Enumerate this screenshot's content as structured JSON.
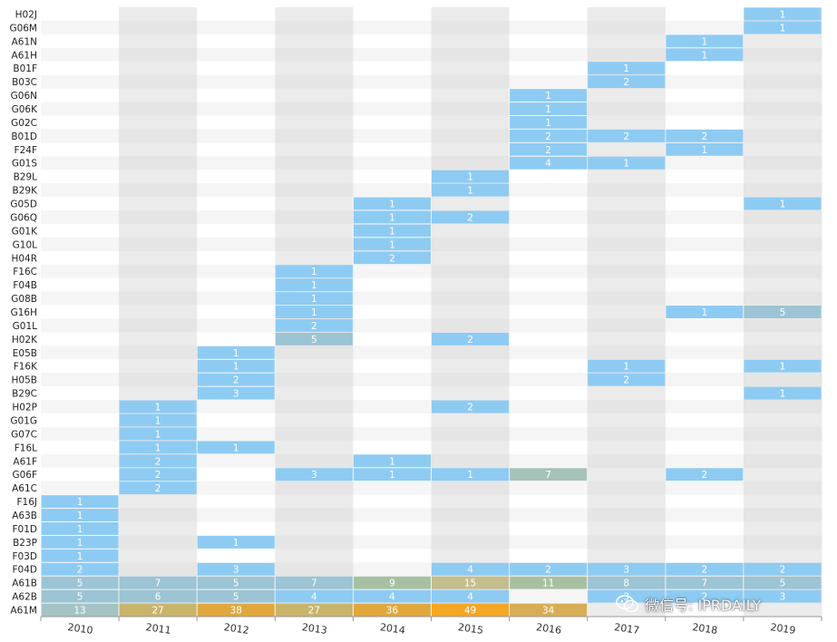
{
  "chart_data": {
    "type": "heatmap",
    "title": "",
    "xlabel": "",
    "ylabel": "",
    "x": [
      "2010",
      "2011",
      "2012",
      "2013",
      "2014",
      "2015",
      "2016",
      "2017",
      "2018",
      "2019"
    ],
    "y": [
      "H02J",
      "G06M",
      "A61N",
      "A61H",
      "B01F",
      "B03C",
      "G06N",
      "G06K",
      "G02C",
      "B01D",
      "F24F",
      "G01S",
      "B29L",
      "B29K",
      "G05D",
      "G06Q",
      "G01K",
      "G10L",
      "H04R",
      "F16C",
      "F04B",
      "G08B",
      "G16H",
      "G01L",
      "H02K",
      "E05B",
      "F16K",
      "H05B",
      "B29C",
      "H02P",
      "G01G",
      "G07C",
      "F16L",
      "A61F",
      "G06F",
      "A61C",
      "F16J",
      "A63B",
      "F01D",
      "B23P",
      "F03D",
      "F04D",
      "A61B",
      "A62B",
      "A61M"
    ],
    "cells": [
      [
        "H02J",
        "2019",
        1
      ],
      [
        "G06M",
        "2019",
        1
      ],
      [
        "A61N",
        "2018",
        1
      ],
      [
        "A61H",
        "2018",
        1
      ],
      [
        "B01F",
        "2017",
        1
      ],
      [
        "B03C",
        "2017",
        2
      ],
      [
        "G06N",
        "2016",
        1
      ],
      [
        "G06K",
        "2016",
        1
      ],
      [
        "G02C",
        "2016",
        1
      ],
      [
        "B01D",
        "2016",
        2
      ],
      [
        "B01D",
        "2017",
        2
      ],
      [
        "B01D",
        "2018",
        2
      ],
      [
        "F24F",
        "2016",
        2
      ],
      [
        "F24F",
        "2018",
        1
      ],
      [
        "G01S",
        "2016",
        4
      ],
      [
        "G01S",
        "2017",
        1
      ],
      [
        "B29L",
        "2015",
        1
      ],
      [
        "B29K",
        "2015",
        1
      ],
      [
        "G05D",
        "2014",
        1
      ],
      [
        "G05D",
        "2019",
        1
      ],
      [
        "G06Q",
        "2014",
        1
      ],
      [
        "G06Q",
        "2015",
        2
      ],
      [
        "G01K",
        "2014",
        1
      ],
      [
        "G10L",
        "2014",
        1
      ],
      [
        "H04R",
        "2014",
        2
      ],
      [
        "F16C",
        "2013",
        1
      ],
      [
        "F04B",
        "2013",
        1
      ],
      [
        "G08B",
        "2013",
        1
      ],
      [
        "G16H",
        "2013",
        1
      ],
      [
        "G16H",
        "2018",
        1
      ],
      [
        "G16H",
        "2019",
        5
      ],
      [
        "G01L",
        "2013",
        2
      ],
      [
        "H02K",
        "2013",
        5
      ],
      [
        "H02K",
        "2015",
        2
      ],
      [
        "E05B",
        "2012",
        1
      ],
      [
        "F16K",
        "2012",
        1
      ],
      [
        "F16K",
        "2017",
        1
      ],
      [
        "F16K",
        "2019",
        1
      ],
      [
        "H05B",
        "2012",
        2
      ],
      [
        "H05B",
        "2017",
        2
      ],
      [
        "B29C",
        "2012",
        3
      ],
      [
        "B29C",
        "2019",
        1
      ],
      [
        "H02P",
        "2011",
        1
      ],
      [
        "H02P",
        "2015",
        2
      ],
      [
        "G01G",
        "2011",
        1
      ],
      [
        "G07C",
        "2011",
        1
      ],
      [
        "F16L",
        "2011",
        1
      ],
      [
        "F16L",
        "2012",
        1
      ],
      [
        "A61F",
        "2011",
        2
      ],
      [
        "A61F",
        "2014",
        1
      ],
      [
        "G06F",
        "2011",
        2
      ],
      [
        "G06F",
        "2013",
        3
      ],
      [
        "G06F",
        "2014",
        1
      ],
      [
        "G06F",
        "2015",
        1
      ],
      [
        "G06F",
        "2016",
        7
      ],
      [
        "G06F",
        "2018",
        2
      ],
      [
        "A61C",
        "2011",
        2
      ],
      [
        "F16J",
        "2010",
        1
      ],
      [
        "A63B",
        "2010",
        1
      ],
      [
        "F01D",
        "2010",
        1
      ],
      [
        "B23P",
        "2010",
        1
      ],
      [
        "B23P",
        "2012",
        1
      ],
      [
        "F03D",
        "2010",
        1
      ],
      [
        "F04D",
        "2010",
        2
      ],
      [
        "F04D",
        "2012",
        3
      ],
      [
        "F04D",
        "2015",
        4
      ],
      [
        "F04D",
        "2016",
        2
      ],
      [
        "F04D",
        "2017",
        3
      ],
      [
        "F04D",
        "2018",
        2
      ],
      [
        "F04D",
        "2019",
        2
      ],
      [
        "A61B",
        "2010",
        5
      ],
      [
        "A61B",
        "2011",
        7
      ],
      [
        "A61B",
        "2012",
        5
      ],
      [
        "A61B",
        "2013",
        7
      ],
      [
        "A61B",
        "2014",
        9
      ],
      [
        "A61B",
        "2015",
        15
      ],
      [
        "A61B",
        "2016",
        11
      ],
      [
        "A61B",
        "2017",
        8
      ],
      [
        "A61B",
        "2018",
        7
      ],
      [
        "A61B",
        "2019",
        5
      ],
      [
        "A62B",
        "2010",
        5
      ],
      [
        "A62B",
        "2011",
        6
      ],
      [
        "A62B",
        "2012",
        5
      ],
      [
        "A62B",
        "2013",
        4
      ],
      [
        "A62B",
        "2014",
        4
      ],
      [
        "A62B",
        "2015",
        4
      ],
      [
        "A62B",
        "2017",
        3
      ],
      [
        "A62B",
        "2018",
        2
      ],
      [
        "A62B",
        "2019",
        3
      ],
      [
        "A61M",
        "2010",
        13
      ],
      [
        "A61M",
        "2011",
        27
      ],
      [
        "A61M",
        "2012",
        38
      ],
      [
        "A61M",
        "2013",
        27
      ],
      [
        "A61M",
        "2014",
        36
      ],
      [
        "A61M",
        "2015",
        49
      ],
      [
        "A61M",
        "2016",
        34
      ]
    ],
    "colors": {
      "low": "#8ecbf3",
      "mid": "#9cc4d4",
      "high_mid": "#b0bf98",
      "high": "#e0a83c",
      "max": "#f5a623",
      "stripe_a": "#ebebeb",
      "stripe_b": "#f5f5f5",
      "white": "#ffffff"
    }
  },
  "watermark": {
    "icon": "wechat-icon",
    "text": "微信号: IPRDAILY"
  }
}
